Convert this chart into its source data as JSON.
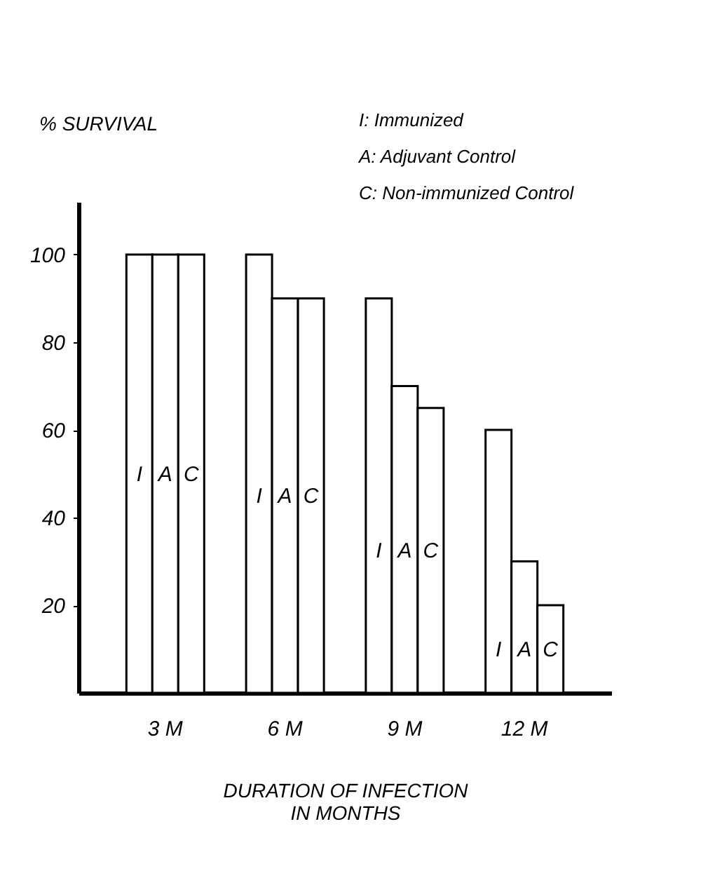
{
  "chart_data": {
    "type": "bar",
    "ylabel": "% SURVIVAL",
    "xlabel": "DURATION OF INFECTION\nIN MONTHS",
    "categories": [
      "3 M",
      "6 M",
      "9 M",
      "12 M"
    ],
    "series": [
      {
        "name": "I",
        "color": "#ffffff",
        "values": [
          100,
          100,
          90,
          60
        ]
      },
      {
        "name": "A",
        "color": "#ffffff",
        "values": [
          100,
          90,
          70,
          30
        ]
      },
      {
        "name": "C",
        "color": "#ffffff",
        "values": [
          100,
          90,
          65,
          20
        ]
      }
    ],
    "annotations": [
      "I:  Immunized",
      "A:  Adjuvant Control",
      "C:  Non-immunized Control"
    ],
    "ylim": [
      0,
      112
    ],
    "yticks": [
      20,
      40,
      60,
      80,
      100
    ],
    "grid": false
  }
}
